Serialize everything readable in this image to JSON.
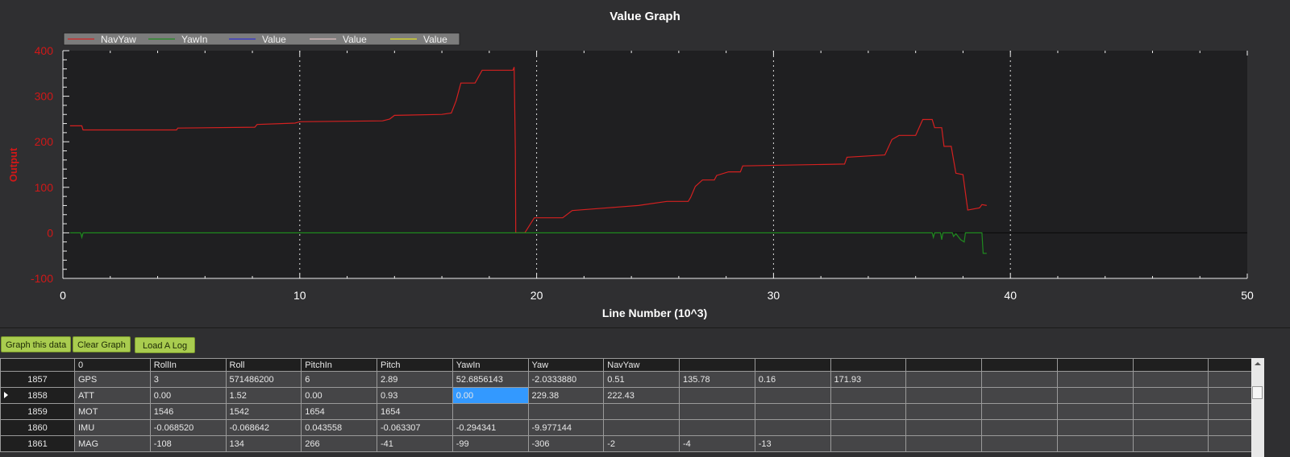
{
  "chart_data": {
    "type": "line",
    "title": "Value Graph",
    "xlabel": "Line Number (10^3)",
    "ylabel": "Output",
    "xlim": [
      0,
      50
    ],
    "ylim": [
      -100,
      400
    ],
    "xticks": [
      "0",
      "10",
      "20",
      "30",
      "40",
      "50"
    ],
    "yticks": [
      "400",
      "300",
      "200",
      "100",
      "0",
      "-100"
    ],
    "xtick_values": [
      0,
      10,
      20,
      30,
      40,
      50
    ],
    "ytick_values": [
      400,
      300,
      200,
      100,
      0,
      -100
    ],
    "grid": "vertical dotted",
    "legend_position": "top-left",
    "legend": [
      {
        "name": "NavYaw",
        "color": "#d42020"
      },
      {
        "name": "YawIn",
        "color": "#1f8a1f"
      },
      {
        "name": "Value",
        "color": "#3030d0"
      },
      {
        "name": "Value",
        "color": "#e0c0c0"
      },
      {
        "name": "Value",
        "color": "#e0e020"
      }
    ],
    "series": [
      {
        "name": "NavYaw",
        "color": "#d42020",
        "points": [
          [
            0.3,
            235
          ],
          [
            0.8,
            235
          ],
          [
            0.85,
            226
          ],
          [
            4.8,
            226
          ],
          [
            4.85,
            230
          ],
          [
            8.1,
            232
          ],
          [
            8.2,
            238
          ],
          [
            9.8,
            241
          ],
          [
            10,
            244
          ],
          [
            13.5,
            246
          ],
          [
            13.8,
            250
          ],
          [
            14.0,
            258
          ],
          [
            16.0,
            260
          ],
          [
            16.4,
            263
          ],
          [
            16.6,
            290
          ],
          [
            16.8,
            329
          ],
          [
            17.4,
            329
          ],
          [
            17.7,
            357
          ],
          [
            19.0,
            357
          ],
          [
            19.05,
            364
          ],
          [
            19.1,
            180
          ],
          [
            19.12,
            0
          ],
          [
            19.5,
            0
          ],
          [
            19.9,
            33
          ],
          [
            21.1,
            33
          ],
          [
            21.5,
            49
          ],
          [
            23.0,
            55
          ],
          [
            24.3,
            60
          ],
          [
            25.5,
            69
          ],
          [
            26.4,
            69
          ],
          [
            26.5,
            78
          ],
          [
            26.7,
            102
          ],
          [
            27.0,
            116
          ],
          [
            27.5,
            116
          ],
          [
            27.6,
            126
          ],
          [
            28.1,
            134
          ],
          [
            28.6,
            134
          ],
          [
            28.7,
            147
          ],
          [
            33.0,
            151
          ],
          [
            33.1,
            166
          ],
          [
            34.7,
            171
          ],
          [
            35.0,
            205
          ],
          [
            35.3,
            214
          ],
          [
            36.0,
            214
          ],
          [
            36.3,
            249
          ],
          [
            36.7,
            249
          ],
          [
            36.8,
            231
          ],
          [
            37.1,
            231
          ],
          [
            37.2,
            190
          ],
          [
            37.5,
            190
          ],
          [
            37.7,
            131
          ],
          [
            38.0,
            128
          ],
          [
            38.2,
            50
          ],
          [
            38.7,
            55
          ],
          [
            38.8,
            62
          ],
          [
            39.0,
            60
          ]
        ]
      },
      {
        "name": "YawIn",
        "color": "#1f8a1f",
        "points": [
          [
            0.3,
            0
          ],
          [
            0.75,
            0
          ],
          [
            0.8,
            -10
          ],
          [
            0.85,
            0
          ],
          [
            36.7,
            0
          ],
          [
            36.75,
            -10
          ],
          [
            36.8,
            0
          ],
          [
            37.05,
            0
          ],
          [
            37.1,
            -15
          ],
          [
            37.15,
            0
          ],
          [
            37.55,
            0
          ],
          [
            37.6,
            -8
          ],
          [
            37.7,
            -2
          ],
          [
            37.9,
            -15
          ],
          [
            38.05,
            -20
          ],
          [
            38.1,
            0
          ],
          [
            38.8,
            0
          ],
          [
            38.85,
            -45
          ],
          [
            39.0,
            -45
          ]
        ]
      }
    ]
  },
  "toolbar": {
    "graph_label": "Graph this data",
    "clear_label": "Clear Graph",
    "load_label": "Load A Log"
  },
  "table": {
    "headers": [
      "0",
      "RollIn",
      "Roll",
      "PitchIn",
      "Pitch",
      "YawIn",
      "Yaw",
      "NavYaw",
      "",
      "",
      "",
      "",
      "",
      "",
      "",
      ""
    ],
    "rows": [
      {
        "id": "1857",
        "cells": [
          "GPS",
          "3",
          "571486200",
          "6",
          "2.89",
          "52.6856143",
          "-2.0333880",
          "0.51",
          "135.78",
          "0.16",
          "171.93",
          "",
          "",
          "",
          "",
          ""
        ]
      },
      {
        "id": "1858",
        "current": true,
        "cells": [
          "ATT",
          "0.00",
          "1.52",
          "0.00",
          "0.93",
          "0.00",
          "229.38",
          "222.43",
          "",
          "",
          "",
          "",
          "",
          "",
          "",
          ""
        ]
      },
      {
        "id": "1859",
        "cells": [
          "MOT",
          "1546",
          "1542",
          "1654",
          "1654",
          "",
          "",
          "",
          "",
          "",
          "",
          "",
          "",
          "",
          "",
          ""
        ]
      },
      {
        "id": "1860",
        "cells": [
          "IMU",
          "-0.068520",
          "-0.068642",
          "0.043558",
          "-0.063307",
          "-0.294341",
          "-9.977144",
          "",
          "",
          "",
          "",
          "",
          "",
          "",
          "",
          ""
        ]
      },
      {
        "id": "1861",
        "cells": [
          "MAG",
          "-108",
          "134",
          "266",
          "-41",
          "-99",
          "-306",
          "-2",
          "-4",
          "-13",
          "",
          "",
          "",
          "",
          "",
          ""
        ]
      }
    ],
    "selected_row": 1,
    "selected_col": 5
  },
  "colors": {
    "selection": "#3399ff",
    "button": "#a9cc4f",
    "axis_label": "#d01818"
  }
}
